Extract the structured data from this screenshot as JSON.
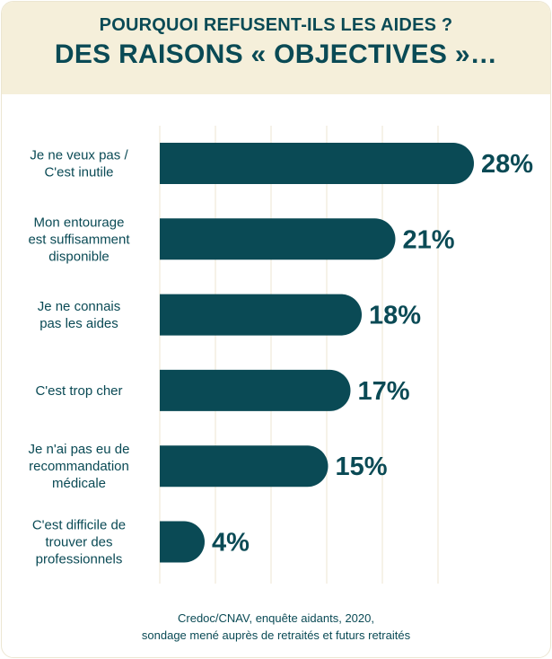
{
  "header": {
    "subtitle": "POURQUOI REFUSENT-ILS LES AIDES ?",
    "title": "DES RAISONS « OBJECTIVES »…"
  },
  "chart_data": {
    "type": "bar",
    "orientation": "horizontal",
    "categories": [
      [
        "Je ne veux pas /",
        "C'est inutile"
      ],
      [
        "Mon entourage",
        "est suffisamment",
        "disponible"
      ],
      [
        "Je ne connais",
        "pas les aides"
      ],
      [
        "C'est trop cher"
      ],
      [
        "Je n'ai pas eu de",
        "recommandation",
        "médicale"
      ],
      [
        "C'est difficile de",
        "trouver des",
        "professionnels"
      ]
    ],
    "values": [
      28,
      21,
      18,
      17,
      15,
      4
    ],
    "value_labels": [
      "28%",
      "21%",
      "18%",
      "17%",
      "15%",
      "4%"
    ],
    "xlim": [
      0,
      30
    ],
    "grid": true,
    "colors": {
      "bar": "#0a4a55",
      "text": "#0a4a55",
      "grid": "#ece6d2",
      "header_bg": "#f5efda"
    }
  },
  "source": {
    "line1": "Credoc/CNAV, enquête aidants, 2020,",
    "line2": "sondage mené auprès de retraités et futurs retraités"
  }
}
